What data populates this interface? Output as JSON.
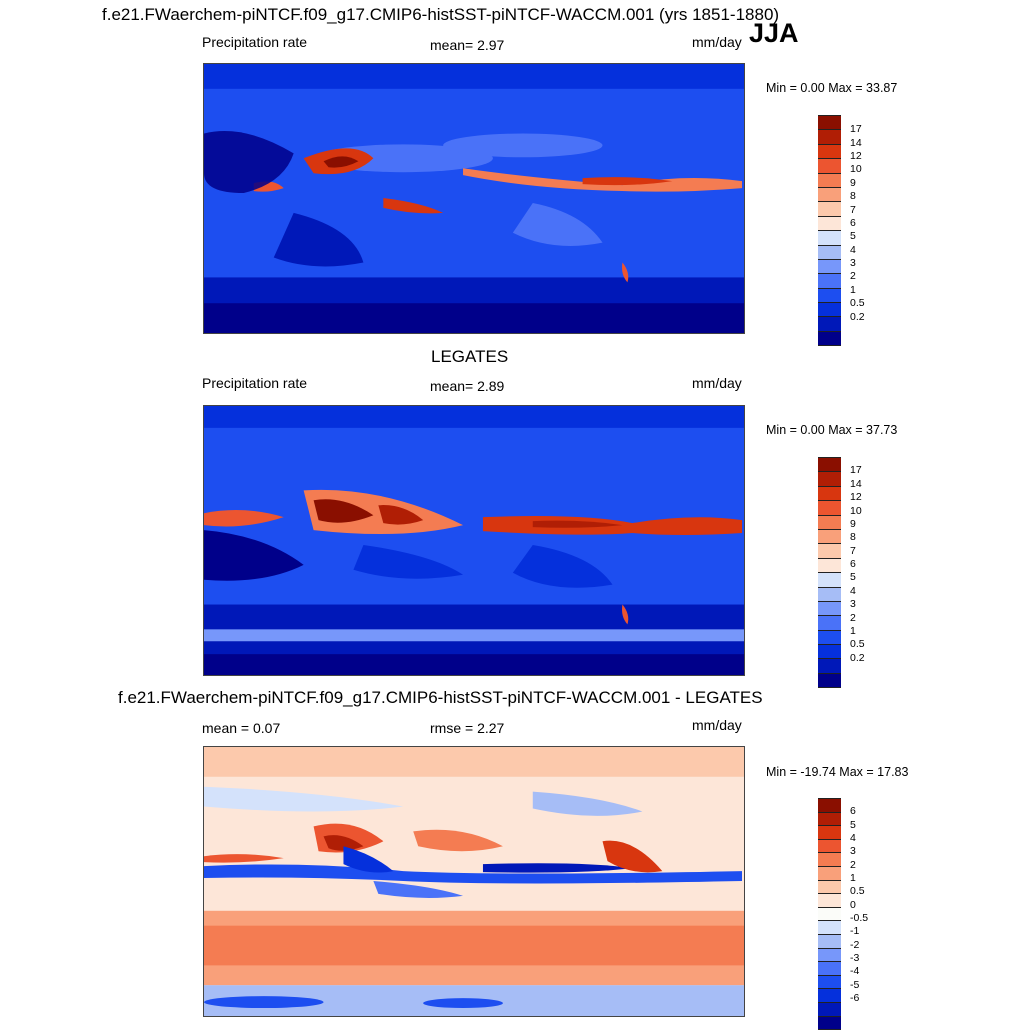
{
  "season": "JJA",
  "palettes": {
    "abs": [
      "#00008a",
      "#0018b8",
      "#0530dc",
      "#1d4ef0",
      "#4a72f8",
      "#7797fa",
      "#a6bdf6",
      "#d4e2fb",
      "#fde6d8",
      "#fcc9ac",
      "#f9a07a",
      "#f47c52",
      "#ec5530",
      "#d8360f",
      "#b01e05",
      "#8a0f00"
    ],
    "diff": [
      "#00008a",
      "#0018b8",
      "#0530dc",
      "#1d4ef0",
      "#4a72f8",
      "#7797fa",
      "#a6bdf6",
      "#d4e2fb",
      "#fbfcf9",
      "#fde6d8",
      "#fcc9ac",
      "#f9a07a",
      "#f47c52",
      "#ec5530",
      "#d8360f",
      "#b01e05",
      "#8a0f00"
    ]
  },
  "panels": [
    {
      "name": "model",
      "title": "f.e21.FWaerchem-piNTCF.f09_g17.CMIP6-histSST-piNTCF-WACCM.001 (yrs 1851-1880)",
      "left_label": "Precipitation rate",
      "center_label": "mean=   2.97",
      "units": "mm/day",
      "minmax": "Min =   0.00 Max =  33.87",
      "palette": "abs",
      "colorbar_labels": [
        "17",
        "14",
        "12",
        "10",
        "9",
        "8",
        "7",
        "6",
        "5",
        "4",
        "3",
        "2",
        "1",
        "0.5",
        "0.2"
      ]
    },
    {
      "name": "obs",
      "title": "LEGATES",
      "left_label": "Precipitation rate",
      "center_label": "mean=   2.89",
      "units": "mm/day",
      "minmax": "Min =   0.00 Max =  37.73",
      "palette": "abs",
      "colorbar_labels": [
        "17",
        "14",
        "12",
        "10",
        "9",
        "8",
        "7",
        "6",
        "5",
        "4",
        "3",
        "2",
        "1",
        "0.5",
        "0.2"
      ]
    },
    {
      "name": "diff",
      "title": "f.e21.FWaerchem-piNTCF.f09_g17.CMIP6-histSST-piNTCF-WACCM.001 - LEGATES",
      "left_label": "mean =   0.07",
      "center_label": "rmse =   2.27",
      "units": "mm/day",
      "minmax": "Min = -19.74 Max =  17.83",
      "palette": "diff",
      "colorbar_labels": [
        "6",
        "5",
        "4",
        "3",
        "2",
        "1",
        "0.5",
        "0",
        "-0.5",
        "-1",
        "-2",
        "-3",
        "-4",
        "-5",
        "-6"
      ]
    }
  ]
}
